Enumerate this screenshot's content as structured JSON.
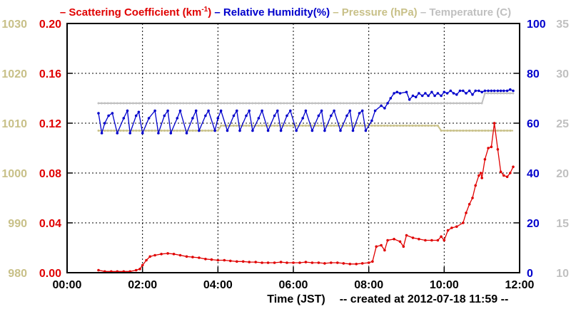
{
  "legend": [
    {
      "key": "scattering",
      "dash": "–",
      "text": "Scattering Coefficient (km",
      "sup": "-1",
      "tail": ")",
      "color": "#e00000"
    },
    {
      "key": "humidity",
      "dash": "–",
      "text": "Relative Humidity(%)",
      "color": "#0000cc"
    },
    {
      "key": "pressure",
      "dash": "–",
      "text": "Pressure (hPa)",
      "color": "#c8c088"
    },
    {
      "key": "temperature",
      "dash": "–",
      "text": "Temperature (C)",
      "color": "#c0c0c0"
    }
  ],
  "xlabel": "Time (JST)",
  "created_note": "-- created at 2012-07-18 11:59 --",
  "chart_data": {
    "type": "line",
    "grid": true,
    "x_axis": {
      "range": [
        "00:00",
        "12:00"
      ],
      "ticks": [
        "00:00",
        "02:00",
        "04:00",
        "06:00",
        "08:00",
        "10:00",
        "12:00"
      ]
    },
    "y_axes": {
      "pressure": {
        "side": "left-outer",
        "range": [
          980,
          1030
        ],
        "ticks": [
          "980",
          "990",
          "1000",
          "1010",
          "1020",
          "1030"
        ],
        "color": "#c8c088"
      },
      "scattering": {
        "side": "left-inner",
        "range": [
          0,
          0.2
        ],
        "ticks": [
          "0.00",
          "0.04",
          "0.08",
          "0.12",
          "0.16",
          "0.20"
        ],
        "color": "#e00000"
      },
      "humidity": {
        "side": "right-inner",
        "range": [
          0,
          100
        ],
        "ticks": [
          "0",
          "20",
          "40",
          "60",
          "80",
          "100"
        ],
        "color": "#0000cc"
      },
      "temperature": {
        "side": "right-outer",
        "range": [
          10,
          35
        ],
        "ticks": [
          "10",
          "15",
          "20",
          "25",
          "30",
          "35"
        ],
        "color": "#c0c0c0"
      }
    },
    "series": [
      {
        "key": "scattering",
        "axis": "scattering",
        "color": "#e00000",
        "points": [
          [
            0.833,
            0.002
          ],
          [
            1.0,
            0.001
          ],
          [
            1.17,
            0.001
          ],
          [
            1.33,
            0.001
          ],
          [
            1.5,
            0.001
          ],
          [
            1.67,
            0.001
          ],
          [
            1.83,
            0.002
          ],
          [
            1.93,
            0.003
          ],
          [
            2.0,
            0.006
          ],
          [
            2.1,
            0.01
          ],
          [
            2.2,
            0.013
          ],
          [
            2.33,
            0.014
          ],
          [
            2.5,
            0.015
          ],
          [
            2.67,
            0.0155
          ],
          [
            2.83,
            0.015
          ],
          [
            3.0,
            0.014
          ],
          [
            3.17,
            0.013
          ],
          [
            3.33,
            0.0125
          ],
          [
            3.5,
            0.012
          ],
          [
            3.67,
            0.011
          ],
          [
            3.83,
            0.0105
          ],
          [
            4.0,
            0.01
          ],
          [
            4.17,
            0.01
          ],
          [
            4.33,
            0.0095
          ],
          [
            4.5,
            0.009
          ],
          [
            4.67,
            0.009
          ],
          [
            4.83,
            0.0085
          ],
          [
            5.0,
            0.0085
          ],
          [
            5.17,
            0.008
          ],
          [
            5.33,
            0.008
          ],
          [
            5.5,
            0.008
          ],
          [
            5.67,
            0.0085
          ],
          [
            5.83,
            0.008
          ],
          [
            6.0,
            0.008
          ],
          [
            6.17,
            0.008
          ],
          [
            6.33,
            0.0085
          ],
          [
            6.5,
            0.008
          ],
          [
            6.67,
            0.008
          ],
          [
            6.83,
            0.0075
          ],
          [
            7.0,
            0.008
          ],
          [
            7.17,
            0.008
          ],
          [
            7.33,
            0.0075
          ],
          [
            7.5,
            0.007
          ],
          [
            7.67,
            0.007
          ],
          [
            7.83,
            0.0075
          ],
          [
            8.0,
            0.008
          ],
          [
            8.1,
            0.009
          ],
          [
            8.2,
            0.021
          ],
          [
            8.33,
            0.022
          ],
          [
            8.42,
            0.018
          ],
          [
            8.5,
            0.026
          ],
          [
            8.67,
            0.027
          ],
          [
            8.83,
            0.025
          ],
          [
            8.92,
            0.021
          ],
          [
            9.0,
            0.03
          ],
          [
            9.17,
            0.028
          ],
          [
            9.33,
            0.027
          ],
          [
            9.5,
            0.026
          ],
          [
            9.67,
            0.026
          ],
          [
            9.83,
            0.026
          ],
          [
            9.92,
            0.029
          ],
          [
            10.0,
            0.026
          ],
          [
            10.1,
            0.034
          ],
          [
            10.2,
            0.036
          ],
          [
            10.33,
            0.037
          ],
          [
            10.5,
            0.04
          ],
          [
            10.58,
            0.048
          ],
          [
            10.67,
            0.055
          ],
          [
            10.75,
            0.06
          ],
          [
            10.83,
            0.07
          ],
          [
            10.92,
            0.078
          ],
          [
            10.97,
            0.08
          ],
          [
            11.0,
            0.076
          ],
          [
            11.08,
            0.091
          ],
          [
            11.17,
            0.1
          ],
          [
            11.25,
            0.101
          ],
          [
            11.33,
            0.12
          ],
          [
            11.42,
            0.099
          ],
          [
            11.5,
            0.081
          ],
          [
            11.58,
            0.078
          ],
          [
            11.67,
            0.077
          ],
          [
            11.75,
            0.08
          ],
          [
            11.83,
            0.085
          ]
        ]
      },
      {
        "key": "humidity",
        "axis": "humidity",
        "color": "#0000cc",
        "points": [
          [
            0.833,
            64
          ],
          [
            0.92,
            56
          ],
          [
            1.0,
            60
          ],
          [
            1.1,
            63
          ],
          [
            1.2,
            64
          ],
          [
            1.33,
            56
          ],
          [
            1.5,
            62
          ],
          [
            1.6,
            65
          ],
          [
            1.67,
            56
          ],
          [
            1.83,
            63
          ],
          [
            1.9,
            64.5
          ],
          [
            2.0,
            56
          ],
          [
            2.17,
            62
          ],
          [
            2.33,
            65
          ],
          [
            2.42,
            56
          ],
          [
            2.58,
            63
          ],
          [
            2.67,
            65
          ],
          [
            2.75,
            56
          ],
          [
            2.92,
            62
          ],
          [
            3.0,
            65
          ],
          [
            3.17,
            56
          ],
          [
            3.33,
            62
          ],
          [
            3.42,
            65
          ],
          [
            3.5,
            57
          ],
          [
            3.67,
            63
          ],
          [
            3.75,
            65
          ],
          [
            3.92,
            57
          ],
          [
            4.0,
            62
          ],
          [
            4.08,
            65
          ],
          [
            4.25,
            57
          ],
          [
            4.42,
            63
          ],
          [
            4.5,
            65
          ],
          [
            4.58,
            57
          ],
          [
            4.75,
            63
          ],
          [
            4.83,
            65
          ],
          [
            4.92,
            57
          ],
          [
            5.08,
            62
          ],
          [
            5.17,
            65
          ],
          [
            5.33,
            57
          ],
          [
            5.5,
            63
          ],
          [
            5.58,
            65
          ],
          [
            5.67,
            57
          ],
          [
            5.83,
            63
          ],
          [
            5.92,
            65
          ],
          [
            6.08,
            57
          ],
          [
            6.25,
            62
          ],
          [
            6.33,
            65
          ],
          [
            6.5,
            57
          ],
          [
            6.67,
            63
          ],
          [
            6.75,
            65
          ],
          [
            6.83,
            57
          ],
          [
            7.0,
            63
          ],
          [
            7.08,
            65
          ],
          [
            7.25,
            57
          ],
          [
            7.42,
            63
          ],
          [
            7.5,
            65
          ],
          [
            7.58,
            57
          ],
          [
            7.75,
            64
          ],
          [
            7.83,
            65
          ],
          [
            7.92,
            57
          ],
          [
            8.08,
            61
          ],
          [
            8.17,
            65
          ],
          [
            8.33,
            67
          ],
          [
            8.42,
            66
          ],
          [
            8.5,
            68
          ],
          [
            8.58,
            70
          ],
          [
            8.67,
            72
          ],
          [
            8.75,
            72.5
          ],
          [
            8.83,
            72
          ],
          [
            9.0,
            72.5
          ],
          [
            9.08,
            69.5
          ],
          [
            9.17,
            71
          ],
          [
            9.25,
            70.5
          ],
          [
            9.33,
            72
          ],
          [
            9.42,
            71
          ],
          [
            9.5,
            72
          ],
          [
            9.58,
            71
          ],
          [
            9.67,
            72.5
          ],
          [
            9.75,
            71
          ],
          [
            9.83,
            72
          ],
          [
            9.92,
            71
          ],
          [
            10.0,
            72.5
          ],
          [
            10.08,
            72
          ],
          [
            10.17,
            73
          ],
          [
            10.25,
            72
          ],
          [
            10.33,
            71.5
          ],
          [
            10.42,
            73
          ],
          [
            10.5,
            73
          ],
          [
            10.58,
            72
          ],
          [
            10.67,
            73
          ],
          [
            10.75,
            71.5
          ],
          [
            10.83,
            73
          ],
          [
            10.92,
            73
          ],
          [
            11.0,
            72.5
          ],
          [
            11.08,
            73
          ],
          [
            11.17,
            73
          ],
          [
            11.25,
            73
          ],
          [
            11.33,
            73
          ],
          [
            11.42,
            73
          ],
          [
            11.5,
            73
          ],
          [
            11.58,
            73
          ],
          [
            11.67,
            73
          ],
          [
            11.75,
            73.5
          ],
          [
            11.83,
            73
          ]
        ]
      },
      {
        "key": "pressure",
        "axis": "pressure",
        "color": "#c8c088",
        "points": [
          [
            0.833,
            1008.5
          ],
          [
            4.0,
            1008.5
          ],
          [
            4.08,
            1009.5
          ],
          [
            9.83,
            1009.5
          ],
          [
            9.92,
            1008.5
          ],
          [
            11.83,
            1008.5
          ]
        ]
      },
      {
        "key": "temperature",
        "axis": "temperature",
        "color": "#c0c0c0",
        "points": [
          [
            0.833,
            27
          ],
          [
            11.0,
            27
          ],
          [
            11.08,
            28
          ],
          [
            11.83,
            28
          ]
        ]
      }
    ]
  }
}
